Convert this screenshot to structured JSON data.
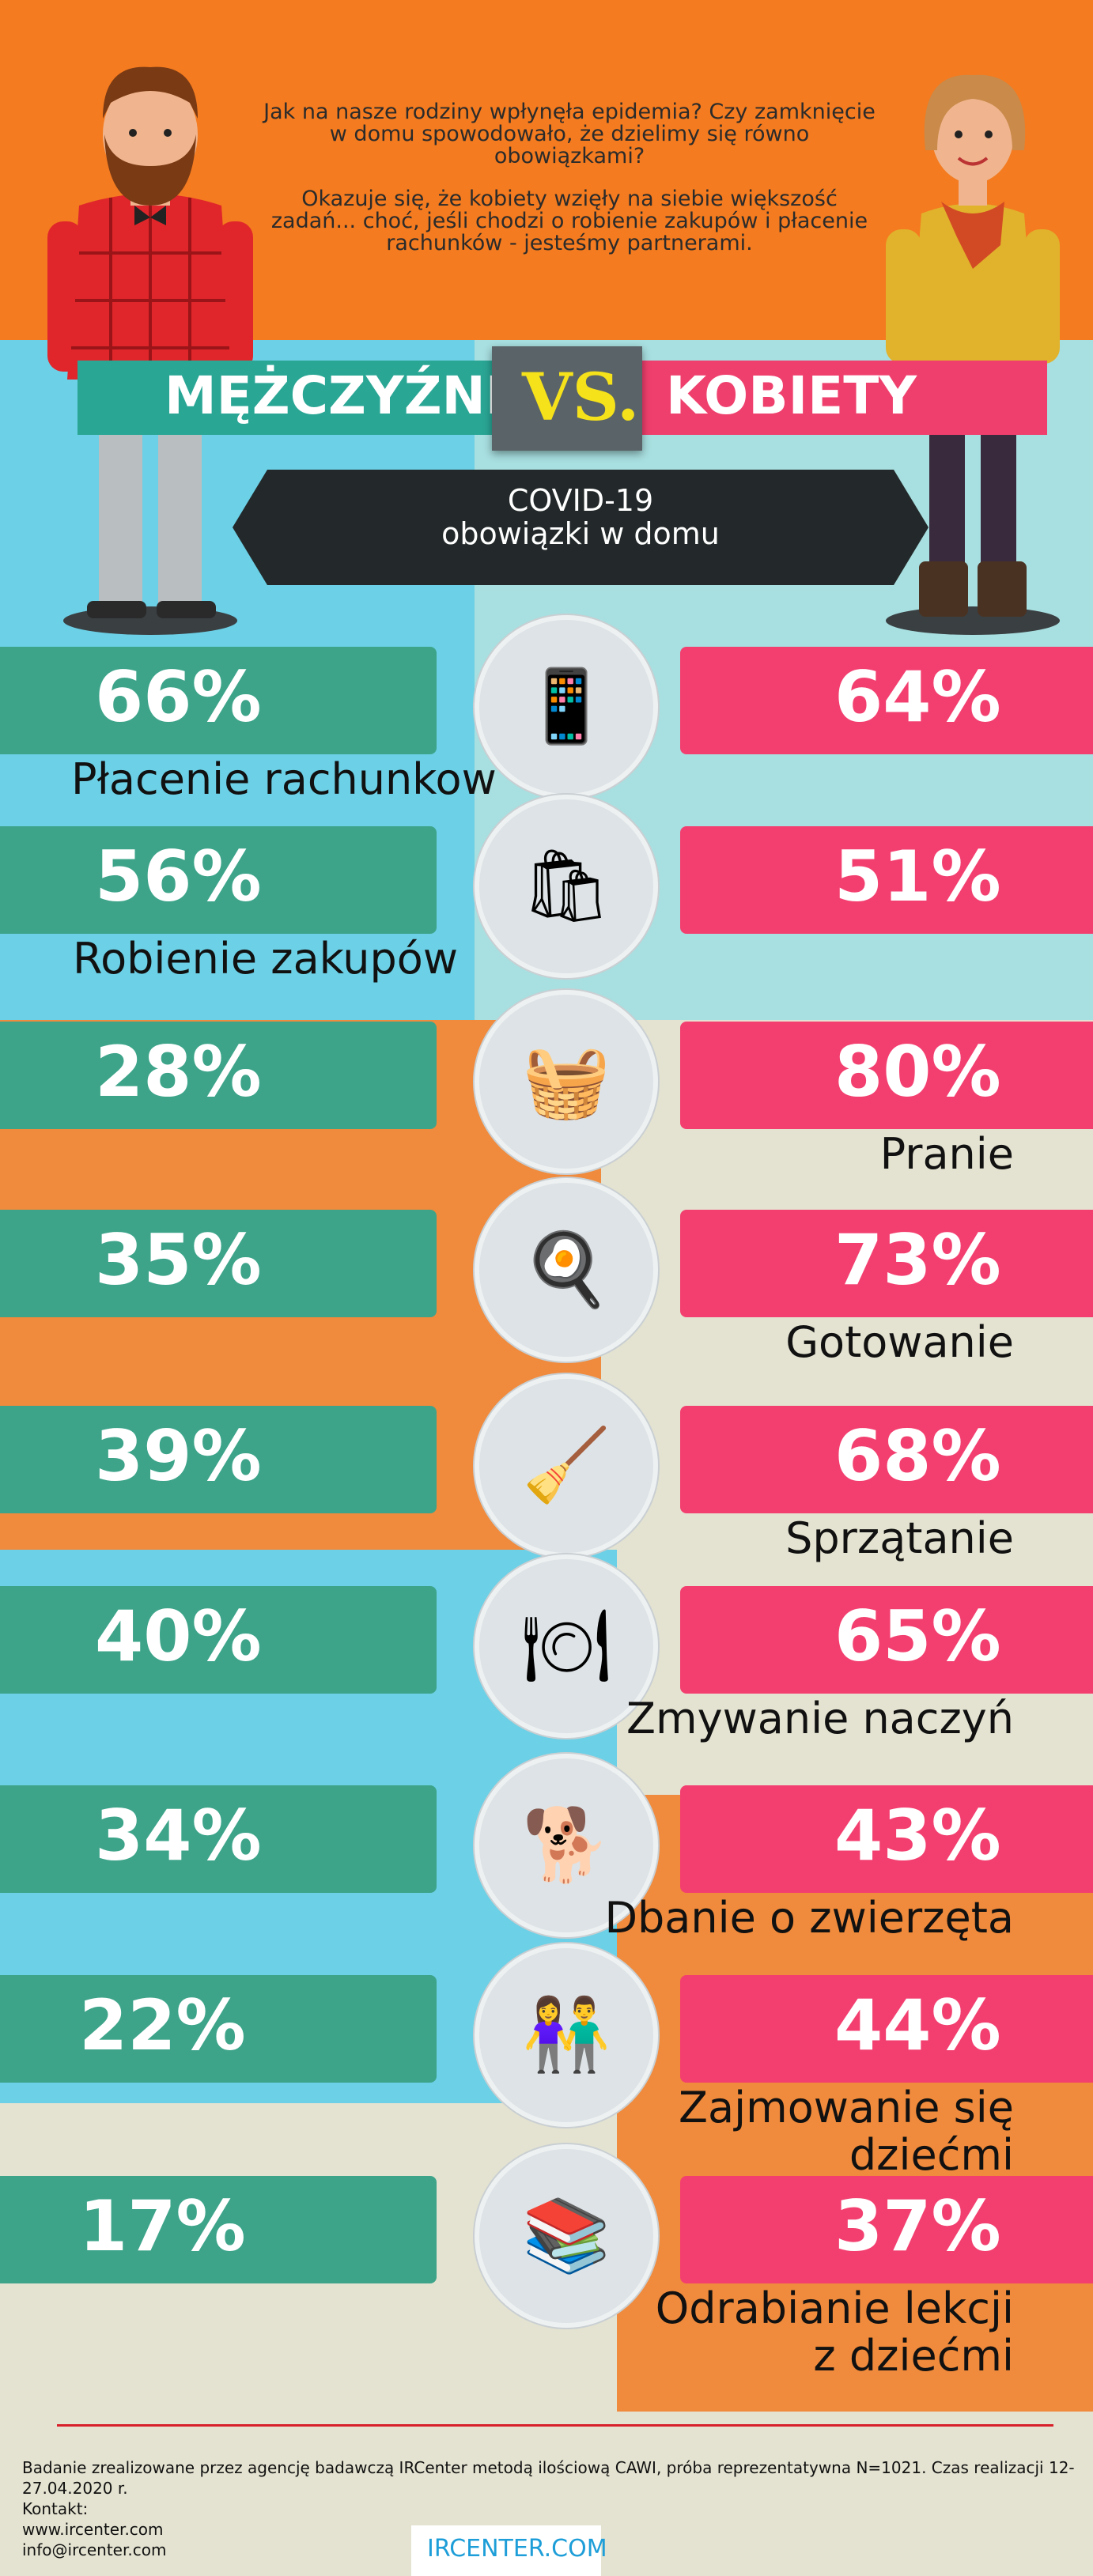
{
  "intro": {
    "p1": "Jak na nasze rodziny wpłynęła epidemia? Czy zamknięcie w domu spowodowało, że dzielimy się równo obowiązkami?",
    "p2": "Okazuje się, że kobiety wzięły na siebie większość zadań... choć, jeśli chodzi o robienie zakupów i płacenie rachunków - jesteśmy partnerami."
  },
  "header": {
    "men": "MĘŻCZYŹNI",
    "vs": "VS.",
    "women": "KOBIETY"
  },
  "subtitle": {
    "line1": "COVID-19",
    "line2": "obowiązki w domu"
  },
  "colors": {
    "men": "#3da48a",
    "women": "#f33f70",
    "accent": "#f6e21a"
  },
  "chart_data": {
    "type": "bar",
    "categories": [
      "Płacenie rachunkow",
      "Robienie zakupów",
      "Pranie",
      "Gotowanie",
      "Sprzątanie",
      "Zmywanie naczyń",
      "Dbanie o zwierzęta",
      "Zajmowanie się dziećmi",
      "Odrabianie lekcji z dziećmi"
    ],
    "series": [
      {
        "name": "MĘŻCZYŹNI",
        "values": [
          66,
          56,
          28,
          35,
          39,
          40,
          34,
          22,
          17
        ]
      },
      {
        "name": "KOBIETY",
        "values": [
          64,
          51,
          80,
          73,
          68,
          65,
          43,
          44,
          37
        ]
      }
    ],
    "labels_m": [
      "66%",
      "56%",
      "28%",
      "35%",
      "39%",
      "40%",
      "34%",
      "22%",
      "17%"
    ],
    "labels_k": [
      "64%",
      "51%",
      "80%",
      "73%",
      "68%",
      "65%",
      "43%",
      "44%",
      "37%"
    ],
    "category_lines": [
      [
        "Płacenie rachunkow"
      ],
      [
        "Robienie zakupów"
      ],
      [
        "Pranie"
      ],
      [
        "Gotowanie"
      ],
      [
        "Sprzątanie"
      ],
      [
        "Zmywanie naczyń"
      ],
      [
        "Dbanie o zwierzęta"
      ],
      [
        "Zajmowanie się",
        "dziećmi"
      ],
      [
        "Odrabianie lekcji",
        "z dziećmi"
      ]
    ],
    "icons": [
      "phone-payment-icon",
      "shopping-person-icon",
      "washing-machine-icon",
      "stove-icon",
      "broom-icon",
      "dishes-icon",
      "dog-icon",
      "children-icon",
      "homework-table-icon"
    ]
  },
  "footer": {
    "note": "Badanie zrealizowane przez agencję badawczą IRCenter metodą ilościową CAWI, próba reprezentatywna N=1021. Czas realizacji 12-27.04.2020 r.",
    "contact_label": "Kontakt:",
    "website": "www.ircenter.com",
    "email": "info@ircenter.com",
    "logo": "IRCENTER.COM"
  }
}
